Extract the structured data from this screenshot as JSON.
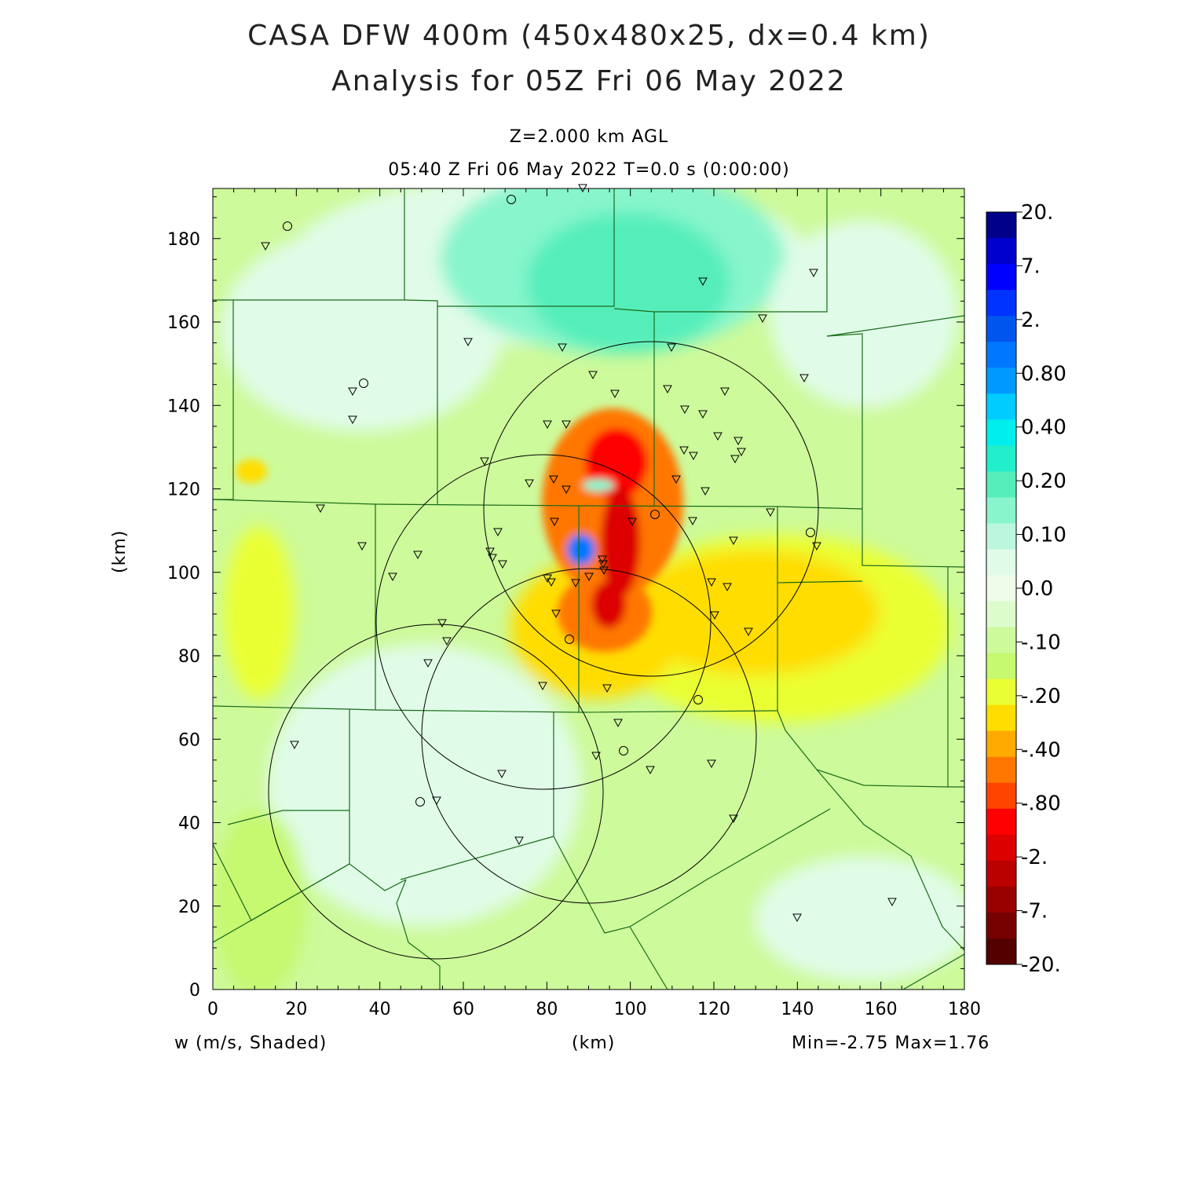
{
  "title_line1": "CASA DFW 400m (450x480x25, dx=0.4 km)",
  "title_line2": "Analysis for 05Z Fri 06 May 2022",
  "level_label": "Z=2.000 km AGL",
  "time_label": "05:40 Z Fri 06 May 2022    T=0.0 s (0:00:00)",
  "x_axis_label": "(km)",
  "y_axis_label": "(km)",
  "field_label": "w (m/s, Shaded)",
  "minmax_label": "Min=-2.75 Max=1.76",
  "x_ticks": [
    "0",
    "20",
    "40",
    "60",
    "80",
    "100",
    "120",
    "140",
    "160",
    "180"
  ],
  "y_ticks": [
    "0",
    "20",
    "40",
    "60",
    "80",
    "100",
    "120",
    "140",
    "160",
    "180"
  ],
  "colorbar": {
    "labels": [
      "20.",
      "7.",
      "2.",
      "0.80",
      "0.40",
      "0.20",
      "0.10",
      "0.0",
      "-.10",
      "-.20",
      "-.40",
      "-.80",
      "-2.",
      "-7.",
      "-20."
    ],
    "colors": [
      "#00008b",
      "#0000cd",
      "#0000ff",
      "#0033ff",
      "#0055ee",
      "#0077ff",
      "#0099ff",
      "#00ccff",
      "#00eeee",
      "#22eecc",
      "#55eebb",
      "#88f5cc",
      "#bbf7dd",
      "#e0fce8",
      "#eefce8",
      "#ddfccc",
      "#cdfa9a",
      "#c6f870",
      "#eaff33",
      "#ffdd00",
      "#ffaa00",
      "#ff7700",
      "#ff4400",
      "#ff0000",
      "#dd0000",
      "#bb0000",
      "#990000",
      "#770000",
      "#550000"
    ]
  },
  "radar_circles": [
    {
      "center_km": [
        105,
        117
      ],
      "radius_km": 40
    },
    {
      "center_km": [
        80,
        88
      ],
      "radius_km": 40
    },
    {
      "center_km": [
        90,
        61
      ],
      "radius_km": 40
    },
    {
      "center_km": [
        53,
        48
      ],
      "radius_km": 40
    }
  ]
}
